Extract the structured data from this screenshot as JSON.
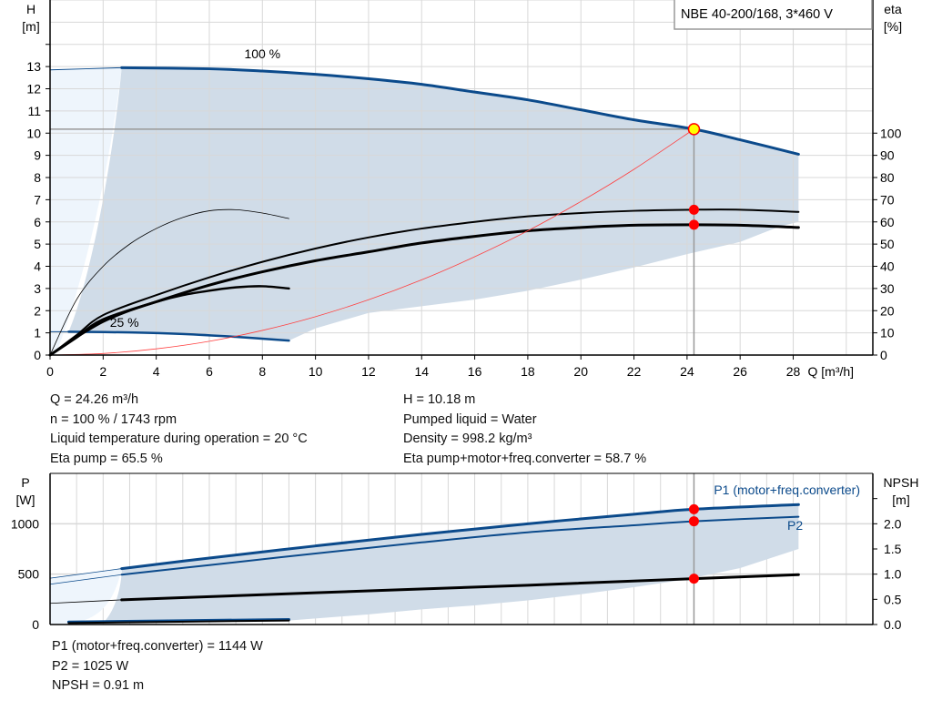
{
  "legend_box": "NBE 40-200/168, 3*460 V",
  "duty_info": {
    "left": [
      "Q = 24.26 m³/h",
      "n = 100 % / 1743 rpm",
      "Liquid temperature during operation = 20 °C",
      "Eta pump = 65.5 %"
    ],
    "right": [
      "H = 10.18 m",
      "Pumped liquid = Water",
      "Density = 998.2 kg/m³",
      "Eta pump+motor+freq.converter = 58.7 %"
    ]
  },
  "power_info": [
    "P1 (motor+freq.converter) = 1144 W",
    "P2 = 1025 W",
    "NPSH = 0.91 m"
  ],
  "colors": {
    "curve_blue": "#0b4a8b",
    "region": "#d0dce8",
    "region_light": "#eef5fc",
    "duty_point": "#ff0000",
    "duty_fill": "#ffff00",
    "system_curve": "#ff4040",
    "grid": "#d8d8d8"
  },
  "chart_data": [
    {
      "type": "line",
      "title": "",
      "xlabel": "Q [m³/h]",
      "ylabel": "H\n[m]",
      "y2label": "eta\n[%]",
      "xlim": [
        0,
        31
      ],
      "ylim": [
        0,
        16
      ],
      "y2lim": [
        0,
        160
      ],
      "xticks": [
        0,
        2,
        4,
        6,
        8,
        10,
        12,
        14,
        16,
        18,
        20,
        22,
        24,
        26,
        28
      ],
      "yticks": [
        0,
        1,
        2,
        3,
        4,
        5,
        6,
        7,
        8,
        9,
        10,
        11,
        12,
        13
      ],
      "y2ticks": [
        0,
        10,
        20,
        30,
        40,
        50,
        60,
        70,
        80,
        90,
        100
      ],
      "grid": true,
      "annotations": [
        {
          "text": "100 %",
          "x": 8,
          "y": 13.3
        },
        {
          "text": "25 %",
          "x": 2.8,
          "y": 1.2
        }
      ],
      "duty_point": {
        "q": 24.26,
        "h": 10.18,
        "eta_pump": 65.5,
        "eta_total": 58.7
      },
      "series": [
        {
          "id": "h-100",
          "axis": "H",
          "width": 3,
          "color": "#0b4a8b",
          "x": [
            2.7,
            6,
            8,
            10,
            12,
            14,
            16,
            18,
            20,
            22,
            24.26,
            26,
            28.2
          ],
          "y": [
            12.95,
            12.9,
            12.8,
            12.65,
            12.45,
            12.2,
            11.85,
            11.5,
            11.05,
            10.6,
            10.18,
            9.7,
            9.05
          ]
        },
        {
          "id": "h-100-ext",
          "axis": "H",
          "width": 1,
          "color": "#0b4a8b",
          "x": [
            0,
            2.7
          ],
          "y": [
            12.85,
            12.95
          ]
        },
        {
          "id": "h-25",
          "axis": "H",
          "width": 2.5,
          "color": "#0b4a8b",
          "x": [
            0.7,
            3,
            5,
            7,
            9
          ],
          "y": [
            1.05,
            1.02,
            0.95,
            0.82,
            0.65
          ]
        },
        {
          "id": "h-25-ext",
          "axis": "H",
          "width": 1,
          "color": "#0b4a8b",
          "x": [
            0,
            0.7
          ],
          "y": [
            1.05,
            1.05
          ]
        },
        {
          "id": "eta-pump-100",
          "axis": "eta",
          "width": 2,
          "color": "#000000",
          "x": [
            0,
            1,
            2,
            4,
            6,
            8,
            10,
            12,
            14,
            16,
            18,
            20,
            22,
            24.26,
            26,
            28.2
          ],
          "y": [
            0,
            9,
            18,
            27,
            35,
            42,
            48,
            53,
            57,
            60,
            62.5,
            64,
            65,
            65.5,
            65.5,
            64.5
          ]
        },
        {
          "id": "eta-total-100",
          "axis": "eta",
          "width": 3,
          "color": "#000000",
          "x": [
            0,
            1,
            2,
            4,
            6,
            8,
            10,
            12,
            14,
            16,
            18,
            20,
            22,
            24.26,
            26,
            28.2
          ],
          "y": [
            0,
            8,
            16,
            24,
            31.5,
            37.5,
            42.5,
            46.5,
            50.5,
            53.5,
            56,
            57.5,
            58.5,
            58.7,
            58.5,
            57.5
          ]
        },
        {
          "id": "eta-pump-25",
          "axis": "eta",
          "width": 0.8,
          "color": "#000000",
          "x": [
            0,
            1,
            2,
            3,
            4,
            5,
            6,
            7,
            8,
            9
          ],
          "y": [
            0,
            25,
            40,
            50,
            57,
            62,
            65,
            65.5,
            64,
            61.5
          ]
        },
        {
          "id": "eta-total-25",
          "axis": "eta",
          "width": 2.5,
          "color": "#000000",
          "x": [
            0,
            1,
            2,
            3,
            4,
            5,
            6,
            7,
            8,
            9
          ],
          "y": [
            0,
            8,
            15,
            20,
            24,
            27,
            29,
            30.5,
            31,
            30
          ]
        },
        {
          "id": "system-curve",
          "axis": "H",
          "width": 0.8,
          "color": "#ff4040",
          "x": [
            0,
            2,
            4,
            6,
            8,
            10,
            12,
            14,
            16,
            18,
            20,
            22,
            24.26
          ],
          "y": [
            0,
            0.07,
            0.28,
            0.62,
            1.11,
            1.73,
            2.49,
            3.39,
            4.43,
            5.6,
            6.92,
            8.37,
            10.18
          ]
        }
      ],
      "region": {
        "upper_x": [
          2.7,
          6,
          8,
          10,
          12,
          14,
          16,
          18,
          20,
          22,
          24.26,
          26,
          28.2
        ],
        "lower_x": [
          28.2,
          27.5,
          26,
          24,
          22,
          20,
          18,
          16,
          14,
          12,
          10,
          9
        ],
        "lower_y": [
          6,
          5.8,
          5.1,
          4.55,
          3.95,
          3.4,
          2.9,
          2.5,
          2.2,
          1.9,
          1.2,
          0.65
        ]
      }
    },
    {
      "type": "line",
      "title": "",
      "ylabel": "P\n[W]",
      "y2label": "NPSH\n[m]",
      "xlim": [
        0,
        31
      ],
      "ylim": [
        0,
        1500
      ],
      "y2lim": [
        0,
        3.0
      ],
      "yticks": [
        0,
        500,
        1000
      ],
      "y2ticks": [
        0.0,
        0.5,
        1.0,
        1.5,
        2.0
      ],
      "y2ticklabels": [
        "0.0",
        "0.5",
        "1.0",
        "1.5",
        "2.0"
      ],
      "grid": true,
      "labels": [
        {
          "text": "P1 (motor+freq.converter)",
          "x": 28.5,
          "y": 1310
        },
        {
          "text": "P2",
          "x": 28.6,
          "y": 985
        }
      ],
      "duty_point": {
        "q": 24.26,
        "p1": 1144,
        "p2": 1025,
        "npsh": 0.91
      },
      "series": [
        {
          "id": "p1",
          "axis": "P",
          "width": 3,
          "color": "#0b4a8b",
          "x": [
            2.7,
            6,
            10,
            14,
            18,
            22,
            24.26,
            28.2
          ],
          "y": [
            555,
            660,
            780,
            895,
            1000,
            1095,
            1144,
            1190
          ]
        },
        {
          "id": "p1-ext",
          "axis": "P",
          "width": 0.8,
          "color": "#0b4a8b",
          "x": [
            0,
            2.7
          ],
          "y": [
            460,
            555
          ]
        },
        {
          "id": "p2",
          "axis": "P",
          "width": 2,
          "color": "#0b4a8b",
          "x": [
            2.7,
            6,
            10,
            14,
            18,
            22,
            24.26,
            28.2
          ],
          "y": [
            495,
            590,
            705,
            815,
            915,
            985,
            1025,
            1070
          ]
        },
        {
          "id": "p2-ext",
          "axis": "P",
          "width": 0.8,
          "color": "#0b4a8b",
          "x": [
            0,
            2.7
          ],
          "y": [
            400,
            495
          ]
        },
        {
          "id": "npsh",
          "axis": "NPSH",
          "width": 3,
          "color": "#000000",
          "x": [
            2.7,
            10,
            18,
            24.26,
            28.2
          ],
          "y": [
            0.49,
            0.63,
            0.78,
            0.91,
            0.99
          ]
        },
        {
          "id": "npsh-ext",
          "axis": "NPSH",
          "width": 0.8,
          "color": "#000000",
          "x": [
            0,
            2.7
          ],
          "y": [
            0.42,
            0.49
          ]
        },
        {
          "id": "p1-25",
          "axis": "P",
          "width": 3,
          "color": "#0b4a8b",
          "x": [
            0.7,
            9
          ],
          "y": [
            25,
            50
          ]
        },
        {
          "id": "p2-25",
          "axis": "P",
          "width": 2,
          "color": "#000000",
          "x": [
            0.7,
            9
          ],
          "y": [
            15,
            40
          ]
        }
      ],
      "region": {
        "upper_x": [
          2.7,
          6,
          10,
          14,
          18,
          22,
          24.26,
          28.2
        ],
        "lower_x": [
          28.2,
          26,
          24,
          22,
          20,
          18,
          16,
          14,
          12,
          10,
          9
        ],
        "lower_y": [
          750,
          560,
          450,
          370,
          300,
          240,
          190,
          150,
          100,
          60,
          40
        ]
      }
    }
  ]
}
